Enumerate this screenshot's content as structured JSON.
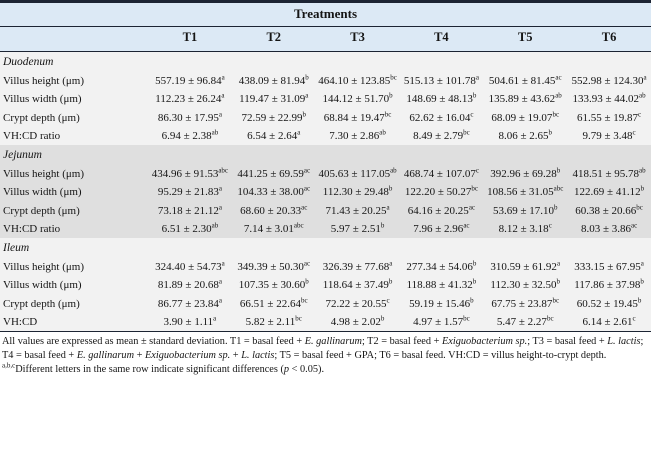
{
  "colors": {
    "header_bg": "#dce9f5",
    "rule": "#1c2433",
    "shaded_section_bg": "#dfdfdf",
    "light_section_bg": "#f2f2f2"
  },
  "table": {
    "header": {
      "title": "Treatments",
      "columns": [
        "T1",
        "T2",
        "T3",
        "T4",
        "T5",
        "T6"
      ]
    },
    "sections": [
      {
        "name": "Duodenum",
        "shaded": false,
        "rows": [
          {
            "label": "Villus height (μm)",
            "cells": [
              "557.19 ± 96.84^a",
              "438.09 ± 81.94^b",
              "464.10 ± 123.85^bc",
              "515.13 ± 101.78^a",
              "504.61 ± 81.45^ac",
              "552.98 ± 124.30^a"
            ]
          },
          {
            "label": "Villus width (μm)",
            "cells": [
              "112.23 ± 26.24^a",
              "119.47 ± 31.09^a",
              "144.12 ± 51.70^b",
              "148.69 ± 48.13^b",
              "135.89 ± 43.62^ab",
              "133.93 ± 44.02^ab"
            ]
          },
          {
            "label": "Crypt depth (μm)",
            "cells": [
              "86.30 ± 17.95^a",
              "72.59 ± 22.99^b",
              "68.84 ± 19.47^bc",
              "62.62 ± 16.04^c",
              "68.09 ± 19.07^bc",
              "61.55 ± 19.87^c"
            ]
          },
          {
            "label": "VH:CD ratio",
            "cells": [
              "6.94 ± 2.38^ab",
              "6.54 ± 2.64^a",
              "7.30 ± 2.86^ab",
              "8.49 ± 2.79^bc",
              "8.06 ± 2.65^b",
              "9.79 ± 3.48^c"
            ]
          }
        ]
      },
      {
        "name": "Jejunum",
        "shaded": true,
        "rows": [
          {
            "label": "Villus height (μm)",
            "cells": [
              "434.96 ± 91.53^abc",
              "441.25 ± 69.59^ac",
              "405.63 ± 117.05^ab",
              "468.74 ± 107.07^c",
              "392.96 ± 69.28^b",
              "418.51 ± 95.78^ab"
            ]
          },
          {
            "label": "Villus width (μm)",
            "cells": [
              "95.29 ± 21.83^a",
              "104.33 ± 38.00^ac",
              "112.30 ± 29.48^b",
              "122.20 ± 50.27^bc",
              "108.56 ± 31.05^abc",
              "122.69 ± 41.12^b"
            ]
          },
          {
            "label": "Crypt depth (μm)",
            "cells": [
              "73.18 ± 21.12^a",
              "68.60 ± 20.33^ac",
              "71.43 ± 20.25^a",
              "64.16 ± 20.25^ac",
              "53.69 ± 17.10^b",
              "60.38 ± 20.66^bc"
            ]
          },
          {
            "label": "VH:CD ratio",
            "cells": [
              "6.51 ± 2.30^ab",
              "7.14 ± 3.01^abc",
              "5.97 ± 2.51^b",
              "7.96 ± 2.96^ac",
              "8.12 ± 3.18^c",
              "8.03 ± 3.86^ac"
            ]
          }
        ]
      },
      {
        "name": "Ileum",
        "shaded": false,
        "rows": [
          {
            "label": "Villus height (μm)",
            "cells": [
              "324.40 ± 54.73^a",
              "349.39 ± 50.30^ac",
              "326.39 ± 77.68^a",
              "277.34 ± 54.06^b",
              "310.59 ± 61.92^a",
              "333.15 ± 67.95^a"
            ]
          },
          {
            "label": "Villus width (μm)",
            "cells": [
              "81.89 ± 20.68^a",
              "107.35 ± 30.60^b",
              "118.64 ± 37.49^b",
              "118.88 ± 41.32^b",
              "112.30 ± 32.50^b",
              "117.86 ± 37.98^b"
            ]
          },
          {
            "label": "Crypt depth (μm)",
            "cells": [
              "86.77 ± 23.84^a",
              "66.51 ± 22.64^bc",
              "72.22 ± 20.55^c",
              "59.19 ± 15.46^b",
              "67.75 ± 23.87^bc",
              "60.52 ± 19.45^b"
            ]
          },
          {
            "label": "VH:CD",
            "cells": [
              "3.90 ± 1.11^a",
              "5.82 ± 2.11^bc",
              "4.98 ± 2.02^b",
              "4.97 ± 1.57^bc",
              "5.47 ± 2.27^bc",
              "6.14 ± 2.61^c"
            ]
          }
        ]
      }
    ],
    "footnotes": {
      "line1_segments": [
        {
          "t": "All values are expressed as mean ± standard deviation. T1 = basal feed + ",
          "i": false
        },
        {
          "t": "E. gallinarum",
          "i": true
        },
        {
          "t": "; T2 = basal feed + ",
          "i": false
        },
        {
          "t": "Exiguobacterium sp.",
          "i": true
        },
        {
          "t": "; T3 = basal feed + ",
          "i": false
        },
        {
          "t": "L. lactis",
          "i": true
        },
        {
          "t": "; T4 = basal feed + ",
          "i": false
        },
        {
          "t": "E. gallinarum",
          "i": true
        },
        {
          "t": " + ",
          "i": false
        },
        {
          "t": "Exiguobacterium sp.",
          "i": true
        },
        {
          "t": " + ",
          "i": false
        },
        {
          "t": "L. lactis",
          "i": true
        },
        {
          "t": "; T5 = basal feed + GPA; T6 = basal feed. VH:CD = villus height-to-crypt depth.",
          "i": false
        }
      ],
      "line2_sup": "a,b,c",
      "line2_segments": [
        {
          "t": "Different letters in the same row indicate significant differences (",
          "i": false
        },
        {
          "t": "p",
          "i": true
        },
        {
          "t": " < 0.05).",
          "i": false
        }
      ]
    }
  }
}
